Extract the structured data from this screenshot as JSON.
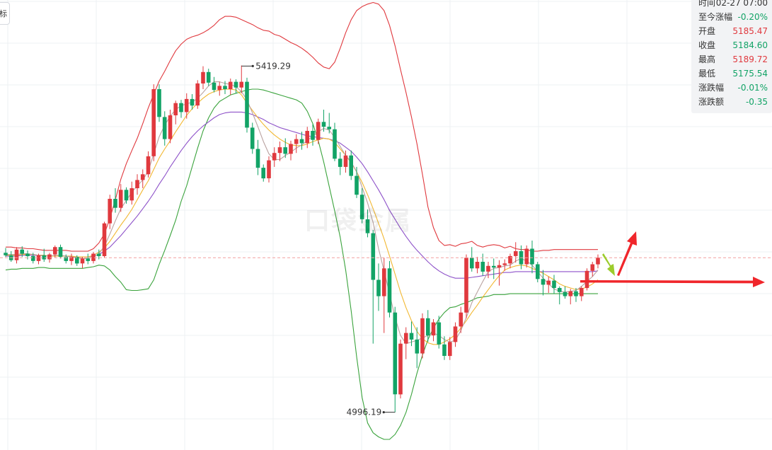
{
  "indicator_button": "标",
  "watermark": "口袋金属",
  "info_panel": {
    "rows": [
      {
        "label": "时间",
        "value": "02-27 07:00",
        "tone": "neutral"
      },
      {
        "label": "至今涨幅",
        "value": "-0.20%",
        "tone": "down"
      },
      {
        "label": "开盘",
        "value": "5185.47",
        "tone": "up"
      },
      {
        "label": "收盘",
        "value": "5184.60",
        "tone": "down"
      },
      {
        "label": "最高",
        "value": "5189.72",
        "tone": "up"
      },
      {
        "label": "最低",
        "value": "5175.54",
        "tone": "down"
      },
      {
        "label": "涨跌幅",
        "value": "-0.01%",
        "tone": "down"
      },
      {
        "label": "涨跌额",
        "value": "-0.35",
        "tone": "down"
      }
    ]
  },
  "chart_data": {
    "type": "candlestick",
    "title": "",
    "xlabel": "",
    "ylabel": "",
    "ylim": [
      4950,
      5500
    ],
    "grid": true,
    "annotations": {
      "high_label": "5419.29",
      "low_label": "4996.19",
      "high_value": 5419.29,
      "low_value": 4996.19,
      "current_price_line": 5185
    },
    "colors": {
      "up": "#e0393e",
      "down": "#12a366",
      "ma_fast": "#b9a2a0",
      "ma_mid": "#f2b832",
      "ma_slow": "#8e52c9",
      "boll_upper": "#e0393e",
      "boll_lower": "#3aa33c",
      "arrow_red": "#f0262b",
      "arrow_green": "#9ccc2c"
    },
    "candles": [
      [
        5191,
        5197,
        5186,
        5188
      ],
      [
        5188,
        5193,
        5180,
        5182
      ],
      [
        5182,
        5198,
        5178,
        5195
      ],
      [
        5195,
        5199,
        5186,
        5190
      ],
      [
        5190,
        5194,
        5183,
        5187
      ],
      [
        5187,
        5191,
        5178,
        5181
      ],
      [
        5181,
        5190,
        5177,
        5188
      ],
      [
        5188,
        5196,
        5180,
        5183
      ],
      [
        5183,
        5191,
        5179,
        5189
      ],
      [
        5189,
        5200,
        5185,
        5198
      ],
      [
        5198,
        5201,
        5184,
        5186
      ],
      [
        5186,
        5189,
        5178,
        5181
      ],
      [
        5181,
        5190,
        5176,
        5186
      ],
      [
        5186,
        5188,
        5175,
        5178
      ],
      [
        5178,
        5186,
        5172,
        5184
      ],
      [
        5184,
        5190,
        5177,
        5181
      ],
      [
        5181,
        5192,
        5178,
        5190
      ],
      [
        5190,
        5195,
        5183,
        5187
      ],
      [
        5187,
        5229,
        5185,
        5227
      ],
      [
        5227,
        5262,
        5220,
        5257
      ],
      [
        5257,
        5270,
        5240,
        5246
      ],
      [
        5246,
        5275,
        5241,
        5268
      ],
      [
        5268,
        5271,
        5251,
        5255
      ],
      [
        5255,
        5278,
        5250,
        5270
      ],
      [
        5270,
        5287,
        5262,
        5280
      ],
      [
        5280,
        5293,
        5270,
        5287
      ],
      [
        5287,
        5315,
        5283,
        5309
      ],
      [
        5309,
        5397,
        5303,
        5391
      ],
      [
        5391,
        5397,
        5351,
        5357
      ],
      [
        5357,
        5364,
        5322,
        5330
      ],
      [
        5330,
        5366,
        5325,
        5359
      ],
      [
        5359,
        5377,
        5348,
        5374
      ],
      [
        5374,
        5378,
        5356,
        5363
      ],
      [
        5363,
        5386,
        5355,
        5379
      ],
      [
        5379,
        5385,
        5366,
        5371
      ],
      [
        5371,
        5402,
        5367,
        5398
      ],
      [
        5398,
        5419,
        5391,
        5412
      ],
      [
        5412,
        5416,
        5395,
        5399
      ],
      [
        5399,
        5406,
        5387,
        5390
      ],
      [
        5390,
        5400,
        5383,
        5395
      ],
      [
        5395,
        5401,
        5385,
        5391
      ],
      [
        5391,
        5404,
        5384,
        5400
      ],
      [
        5400,
        5403,
        5386,
        5393
      ],
      [
        5393,
        5420,
        5386,
        5400
      ],
      [
        5400,
        5405,
        5338,
        5344
      ],
      [
        5344,
        5350,
        5312,
        5318
      ],
      [
        5318,
        5329,
        5286,
        5295
      ],
      [
        5295,
        5299,
        5278,
        5282
      ],
      [
        5282,
        5309,
        5277,
        5304
      ],
      [
        5304,
        5320,
        5296,
        5313
      ],
      [
        5313,
        5327,
        5303,
        5320
      ],
      [
        5320,
        5331,
        5307,
        5312
      ],
      [
        5312,
        5328,
        5304,
        5324
      ],
      [
        5324,
        5336,
        5313,
        5330
      ],
      [
        5330,
        5339,
        5317,
        5325
      ],
      [
        5325,
        5345,
        5319,
        5340
      ],
      [
        5340,
        5348,
        5322,
        5329
      ],
      [
        5329,
        5355,
        5324,
        5351
      ],
      [
        5351,
        5366,
        5339,
        5345
      ],
      [
        5345,
        5362,
        5337,
        5342
      ],
      [
        5342,
        5350,
        5303,
        5306
      ],
      [
        5306,
        5314,
        5286,
        5296
      ],
      [
        5296,
        5316,
        5289,
        5310
      ],
      [
        5310,
        5316,
        5280,
        5285
      ],
      [
        5285,
        5296,
        5258,
        5262
      ],
      [
        5262,
        5270,
        5227,
        5232
      ],
      [
        5232,
        5244,
        5210,
        5215
      ],
      [
        5215,
        5219,
        5080,
        5158
      ],
      [
        5158,
        5178,
        5120,
        5138
      ],
      [
        5138,
        5185,
        5093,
        5172
      ],
      [
        5172,
        5181,
        5112,
        5118
      ],
      [
        5118,
        5125,
        4996,
        5018
      ],
      [
        5018,
        5085,
        5013,
        5080
      ],
      [
        5080,
        5100,
        5061,
        5093
      ],
      [
        5093,
        5107,
        5077,
        5085
      ],
      [
        5085,
        5100,
        5050,
        5068
      ],
      [
        5068,
        5117,
        5062,
        5111
      ],
      [
        5111,
        5121,
        5082,
        5090
      ],
      [
        5090,
        5110,
        5083,
        5106
      ],
      [
        5106,
        5114,
        5074,
        5079
      ],
      [
        5079,
        5089,
        5060,
        5065
      ],
      [
        5065,
        5088,
        5060,
        5082
      ],
      [
        5082,
        5106,
        5076,
        5101
      ],
      [
        5101,
        5125,
        5093,
        5118
      ],
      [
        5118,
        5189,
        5111,
        5185
      ],
      [
        5185,
        5198,
        5168,
        5172
      ],
      [
        5172,
        5186,
        5166,
        5180
      ],
      [
        5180,
        5190,
        5163,
        5168
      ],
      [
        5168,
        5180,
        5160,
        5175
      ],
      [
        5175,
        5184,
        5159,
        5173
      ],
      [
        5173,
        5182,
        5151,
        5176
      ],
      [
        5176,
        5183,
        5169,
        5178
      ],
      [
        5178,
        5190,
        5172,
        5187
      ],
      [
        5187,
        5204,
        5179,
        5193
      ],
      [
        5193,
        5200,
        5171,
        5177
      ],
      [
        5177,
        5200,
        5173,
        5196
      ],
      [
        5196,
        5206,
        5166,
        5177
      ],
      [
        5177,
        5180,
        5155,
        5159
      ],
      [
        5159,
        5170,
        5139,
        5152
      ],
      [
        5152,
        5162,
        5142,
        5157
      ],
      [
        5157,
        5164,
        5141,
        5148
      ],
      [
        5148,
        5150,
        5128,
        5143
      ],
      [
        5143,
        5150,
        5135,
        5138
      ],
      [
        5138,
        5147,
        5128,
        5144
      ],
      [
        5144,
        5148,
        5131,
        5138
      ],
      [
        5138,
        5150,
        5132,
        5148
      ],
      [
        5148,
        5172,
        5145,
        5169
      ],
      [
        5169,
        5180,
        5162,
        5177
      ],
      [
        5177,
        5189,
        5172,
        5185
      ]
    ],
    "series": [
      {
        "name": "",
        "role": "boll_upper",
        "values": [
          5198,
          5198,
          5197,
          5197,
          5196,
          5196,
          5195,
          5194,
          5194,
          5194,
          5194,
          5194,
          5193,
          5193,
          5193,
          5193,
          5196,
          5203,
          5214,
          5233,
          5256,
          5281,
          5300,
          5316,
          5331,
          5349,
          5368,
          5385,
          5401,
          5413,
          5426,
          5438,
          5446,
          5452,
          5455,
          5457,
          5460,
          5464,
          5469,
          5476,
          5480,
          5480,
          5479,
          5476,
          5473,
          5470,
          5466,
          5463,
          5462,
          5458,
          5456,
          5452,
          5448,
          5445,
          5441,
          5436,
          5430,
          5423,
          5418,
          5416,
          5424,
          5441,
          5460,
          5476,
          5487,
          5492,
          5495,
          5497,
          5495,
          5487,
          5469,
          5444,
          5415,
          5387,
          5357,
          5324,
          5287,
          5247,
          5222,
          5206,
          5200,
          5201,
          5199,
          5202,
          5203,
          5205,
          5200,
          5198,
          5200,
          5201,
          5200,
          5197,
          5199,
          5196,
          5195,
          5195,
          5193,
          5193,
          5194,
          5194,
          5195,
          5195,
          5195,
          5195,
          5195,
          5195,
          5195,
          5195,
          5195
        ]
      },
      {
        "name": "",
        "role": "boll_lower",
        "values": [
          5170,
          5171,
          5171,
          5172,
          5172,
          5172,
          5173,
          5173,
          5172,
          5172,
          5172,
          5172,
          5172,
          5172,
          5172,
          5173,
          5174,
          5176,
          5175,
          5170,
          5162,
          5155,
          5146,
          5145,
          5145,
          5146,
          5147,
          5158,
          5177,
          5194,
          5212,
          5231,
          5254,
          5273,
          5296,
          5319,
          5340,
          5356,
          5368,
          5376,
          5380,
          5384,
          5386,
          5388,
          5390,
          5391,
          5391,
          5390,
          5388,
          5386,
          5384,
          5382,
          5380,
          5378,
          5374,
          5364,
          5349,
          5328,
          5302,
          5272,
          5242,
          5210,
          5170,
          5120,
          5064,
          5014,
          4983,
          4971,
          4966,
          4963,
          4963,
          4969,
          4980,
          4996,
          5018,
          5044,
          5066,
          5085,
          5099,
          5110,
          5118,
          5124,
          5125,
          5128,
          5130,
          5133,
          5136,
          5137,
          5138,
          5140,
          5140,
          5140,
          5141,
          5141,
          5141,
          5141,
          5141,
          5141,
          5141,
          5141,
          5141,
          5141,
          5141,
          5141,
          5141,
          5141,
          5141,
          5141,
          5141
        ]
      },
      {
        "name": "",
        "role": "ma_slow",
        "values": [
          5187,
          5187,
          5187,
          5188,
          5188,
          5188,
          5188,
          5188,
          5187,
          5187,
          5187,
          5187,
          5186,
          5186,
          5186,
          5186,
          5187,
          5189,
          5193,
          5198,
          5205,
          5212,
          5220,
          5228,
          5236,
          5245,
          5254,
          5264,
          5275,
          5285,
          5296,
          5306,
          5316,
          5325,
          5333,
          5340,
          5346,
          5351,
          5356,
          5360,
          5362,
          5363,
          5363,
          5363,
          5362,
          5360,
          5357,
          5354,
          5350,
          5347,
          5344,
          5342,
          5340,
          5338,
          5336,
          5334,
          5333,
          5332,
          5331,
          5330,
          5328,
          5325,
          5320,
          5315,
          5308,
          5300,
          5290,
          5279,
          5268,
          5256,
          5243,
          5232,
          5221,
          5211,
          5202,
          5194,
          5187,
          5180,
          5174,
          5169,
          5165,
          5162,
          5160,
          5160,
          5160,
          5161,
          5162,
          5163,
          5164,
          5165,
          5166,
          5167,
          5167,
          5168,
          5168,
          5168,
          5168,
          5168,
          5168,
          5168,
          5168,
          5168,
          5168,
          5168,
          5168,
          5168,
          5168,
          5168,
          5169
        ]
      },
      {
        "name": "",
        "role": "ma_mid",
        "values": [
          5188,
          5188,
          5188,
          5189,
          5189,
          5189,
          5188,
          5188,
          5187,
          5187,
          5187,
          5187,
          5187,
          5186,
          5186,
          5186,
          5188,
          5192,
          5197,
          5205,
          5215,
          5225,
          5234,
          5244,
          5256,
          5268,
          5279,
          5293,
          5307,
          5318,
          5328,
          5339,
          5349,
          5359,
          5367,
          5374,
          5380,
          5385,
          5388,
          5390,
          5391,
          5391,
          5390,
          5384,
          5374,
          5365,
          5356,
          5348,
          5341,
          5335,
          5330,
          5326,
          5323,
          5322,
          5322,
          5324,
          5327,
          5329,
          5331,
          5330,
          5326,
          5318,
          5310,
          5301,
          5290,
          5277,
          5262,
          5245,
          5227,
          5208,
          5187,
          5165,
          5143,
          5124,
          5108,
          5095,
          5086,
          5081,
          5079,
          5079,
          5082,
          5086,
          5091,
          5099,
          5108,
          5118,
          5127,
          5137,
          5146,
          5155,
          5163,
          5170,
          5173,
          5175,
          5176,
          5175,
          5172,
          5169,
          5166,
          5162,
          5158,
          5153,
          5150,
          5148,
          5146,
          5147,
          5149,
          5153,
          5158
        ]
      },
      {
        "name": "",
        "role": "ma_fast",
        "values": [
          5189,
          5189,
          5189,
          5190,
          5190,
          5189,
          5188,
          5187,
          5187,
          5188,
          5188,
          5187,
          5186,
          5185,
          5184,
          5184,
          5186,
          5190,
          5199,
          5214,
          5230,
          5245,
          5255,
          5265,
          5273,
          5280,
          5291,
          5312,
          5333,
          5347,
          5358,
          5366,
          5371,
          5373,
          5375,
          5380,
          5387,
          5395,
          5400,
          5400,
          5398,
          5397,
          5394,
          5388,
          5378,
          5362,
          5345,
          5327,
          5312,
          5305,
          5305,
          5310,
          5314,
          5319,
          5323,
          5328,
          5334,
          5339,
          5343,
          5341,
          5332,
          5321,
          5310,
          5302,
          5290,
          5271,
          5252,
          5228,
          5196,
          5169,
          5141,
          5112,
          5090,
          5080,
          5082,
          5084,
          5087,
          5090,
          5093,
          5090,
          5085,
          5082,
          5084,
          5096,
          5112,
          5130,
          5143,
          5156,
          5168,
          5172,
          5173,
          5175,
          5176,
          5181,
          5184,
          5181,
          5176,
          5168,
          5160,
          5153,
          5147,
          5144,
          5143,
          5144,
          5145,
          5150,
          5156,
          5162,
          5170
        ]
      }
    ]
  }
}
